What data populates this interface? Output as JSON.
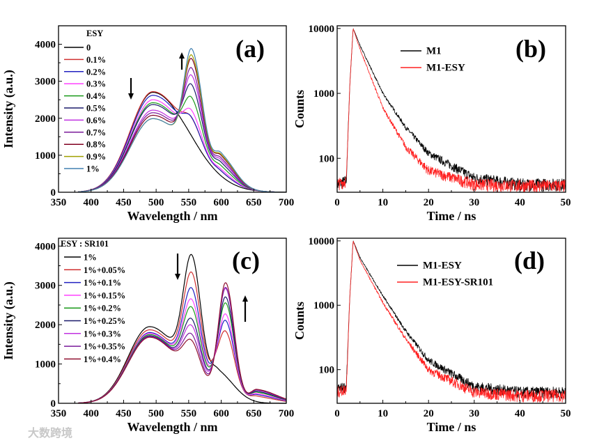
{
  "chart_data": [
    {
      "id": "a",
      "type": "line",
      "label": "(a)",
      "xlabel": "Wavelength / nm",
      "ylabel": "Intensity (a.u.)",
      "xlim": [
        350,
        700
      ],
      "ylim": [
        0,
        4500
      ],
      "xticks": [
        350,
        400,
        450,
        500,
        550,
        600,
        650,
        700
      ],
      "yticks": [
        0,
        1000,
        2000,
        3000,
        4000
      ],
      "legend_title": "ESY",
      "legend_placement": "top-left",
      "series": [
        {
          "name": "0",
          "color": "#000000",
          "peak_495": 2700,
          "value_555": 1500
        },
        {
          "name": "0.1%",
          "color": "#d03030",
          "peak_495": 2720,
          "value_555": 2000
        },
        {
          "name": "0.2%",
          "color": "#2020c0",
          "peak_495": 2620,
          "value_555": 2010
        },
        {
          "name": "0.3%",
          "color": "#ff40ff",
          "peak_495": 2500,
          "value_555": 2200
        },
        {
          "name": "0.4%",
          "color": "#1a9a1a",
          "peak_495": 2420,
          "value_555": 2550
        },
        {
          "name": "0.5%",
          "color": "#1a1a6a",
          "peak_495": 2370,
          "value_555": 2900
        },
        {
          "name": "0.6%",
          "color": "#c030e0",
          "peak_495": 2220,
          "value_555": 3150
        },
        {
          "name": "0.7%",
          "color": "#7a1a9a",
          "peak_495": 2150,
          "value_555": 3350
        },
        {
          "name": "0.8%",
          "color": "#800020",
          "peak_495": 2080,
          "value_555": 3600
        },
        {
          "name": "0.9%",
          "color": "#a0a000",
          "peak_495": 1990,
          "value_555": 3700
        },
        {
          "name": "1%",
          "color": "#4080b0",
          "peak_495": 1990,
          "value_555": 3870
        }
      ]
    },
    {
      "id": "b",
      "type": "line",
      "scale": "log",
      "label": "(b)",
      "xlabel": "Time / ns",
      "ylabel": "Counts",
      "xlim": [
        0,
        50
      ],
      "ylim": [
        30,
        11000
      ],
      "xticks": [
        0,
        10,
        20,
        30,
        40,
        50
      ],
      "yticks": [
        100,
        1000,
        10000
      ],
      "legend_placement": "top-center",
      "t": [
        0,
        2,
        2.8,
        3.5,
        5,
        10,
        15,
        20,
        30,
        40,
        50
      ],
      "series": [
        {
          "name": "M1",
          "color": "#000000",
          "values": [
            40,
            45,
            1500,
            10000,
            5500,
            1000,
            300,
            120,
            50,
            40,
            40
          ]
        },
        {
          "name": "M1-ESY",
          "color": "#ff2020",
          "values": [
            40,
            45,
            1500,
            10000,
            4800,
            600,
            150,
            65,
            40,
            38,
            38
          ]
        }
      ]
    },
    {
      "id": "c",
      "type": "line",
      "label": "(c)",
      "xlabel": "Wavelength / nm",
      "ylabel": "Intensity (a.u.)",
      "xlim": [
        350,
        700
      ],
      "ylim": [
        0,
        4200
      ],
      "xticks": [
        350,
        400,
        450,
        500,
        550,
        600,
        650,
        700
      ],
      "yticks": [
        0,
        1000,
        2000,
        3000,
        4000
      ],
      "legend_title": "ESY : SR101",
      "legend_placement": "top-left",
      "series": [
        {
          "name": "1%",
          "color": "#000000",
          "peak_490": 1950,
          "peak_555": 3870,
          "peak_607": 0
        },
        {
          "name": "1%+0.05%",
          "color": "#d03030",
          "peak_490": 1870,
          "peak_555": 3420,
          "peak_607": 1230
        },
        {
          "name": "1%+0.1%",
          "color": "#2020c0",
          "peak_490": 1800,
          "peak_555": 3020,
          "peak_607": 1580
        },
        {
          "name": "1%+0.15%",
          "color": "#ff40ff",
          "peak_490": 1780,
          "peak_555": 2730,
          "peak_607": 1800
        },
        {
          "name": "1%+0.2%",
          "color": "#1a9a1a",
          "peak_490": 1750,
          "peak_555": 2530,
          "peak_607": 2120
        },
        {
          "name": "1%+0.25%",
          "color": "#1a1a6a",
          "peak_490": 1720,
          "peak_555": 2230,
          "peak_607": 2330
        },
        {
          "name": "1%+0.3%",
          "color": "#c030e0",
          "peak_490": 1700,
          "peak_555": 2060,
          "peak_607": 2580
        },
        {
          "name": "1%+0.35%",
          "color": "#7a1a9a",
          "peak_490": 1700,
          "peak_555": 1840,
          "peak_607": 2650
        },
        {
          "name": "1%+0.4%",
          "color": "#901030",
          "peak_490": 1680,
          "peak_555": 1680,
          "peak_607": 2800
        }
      ]
    },
    {
      "id": "d",
      "type": "line",
      "scale": "log",
      "label": "(d)",
      "xlabel": "Time / ns",
      "ylabel": "Counts",
      "xlim": [
        0,
        50
      ],
      "ylim": [
        30,
        11000
      ],
      "xticks": [
        0,
        10,
        20,
        30,
        40,
        50
      ],
      "yticks": [
        100,
        1000,
        10000
      ],
      "legend_placement": "top-center",
      "t": [
        0,
        2,
        2.8,
        3.5,
        5,
        10,
        15,
        20,
        30,
        40,
        50
      ],
      "series": [
        {
          "name": "M1-ESY",
          "color": "#000000",
          "values": [
            50,
            55,
            1500,
            10000,
            5500,
            1400,
            400,
            140,
            55,
            45,
            45
          ]
        },
        {
          "name": "M1-ESY-SR101",
          "color": "#ff2020",
          "values": [
            45,
            50,
            1500,
            10000,
            5000,
            1100,
            300,
            100,
            45,
            40,
            40
          ]
        }
      ]
    }
  ],
  "watermark": "大数跨境"
}
